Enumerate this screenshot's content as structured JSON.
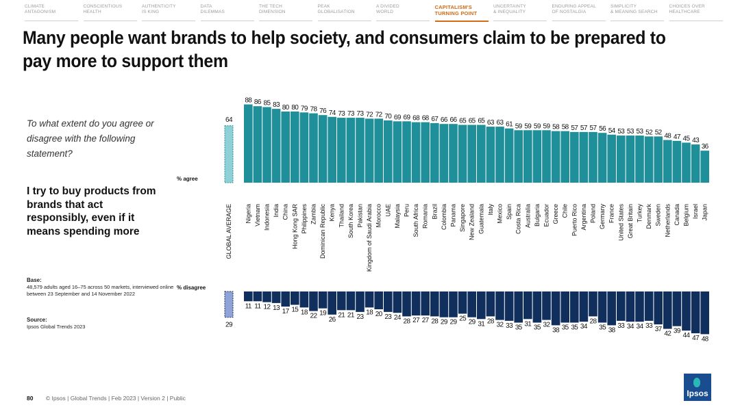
{
  "nav": [
    {
      "l1": "CLIMATE",
      "l2": "ANTAGONISM"
    },
    {
      "l1": "CONSCIENTIOUS",
      "l2": "HEALTH"
    },
    {
      "l1": "AUTHENTICITY",
      "l2": "IS KING"
    },
    {
      "l1": "DATA",
      "l2": "DILEMMAS"
    },
    {
      "l1": "THE TECH",
      "l2": "DIMENSION"
    },
    {
      "l1": "PEAK",
      "l2": "GLOBALISATION"
    },
    {
      "l1": "A DIVIDED",
      "l2": "WORLD"
    },
    {
      "l1": "CAPITALISM'S",
      "l2": "TURNING POINT"
    },
    {
      "l1": "UNCERTAINTY",
      "l2": "& INEQUALITY"
    },
    {
      "l1": "ENDURING APPEAL",
      "l2": "OF NOSTALGIA"
    },
    {
      "l1": "SIMPLICITY",
      "l2": "& MEANING SEARCH"
    },
    {
      "l1": "CHOICES OVER",
      "l2": "HEALTHCARE"
    }
  ],
  "active_nav_index": 7,
  "title": "Many people want brands to help society, and consumers claim to be prepared to pay more to support them",
  "question": "To what extent do you agree or disagree with the following statement?",
  "statement": "I try to buy products from brands that act responsibly, even if it means spending more",
  "base_title": "Base:",
  "base_text": "48,579 adults aged 16–75 across 50 markets, interviewed online between 23 September and 14 November 2022",
  "source_title": "Source:",
  "source_text": "Ipsos Global Trends 2023",
  "footer_page": "80",
  "footer_text": "© Ipsos | Global Trends | Feb 2023 | Version 2 | Public",
  "logo_text": "Ipsos",
  "colors": {
    "agree": "#1f8f9a",
    "disagree": "#112f5c",
    "avg_agree": "#8fd0d6",
    "avg_disagree": "#8fa3d6",
    "accent": "#d36a14"
  },
  "chart_data": {
    "type": "bar",
    "series": [
      {
        "name": "% agree"
      },
      {
        "name": "% disagree"
      }
    ],
    "global_average": {
      "label": "GLOBAL AVERAGE",
      "agree": 64,
      "disagree": 29
    },
    "categories": [
      "Nigeria",
      "Vietnam",
      "Indonesia",
      "India",
      "China",
      "Hong Kong SAR",
      "Philippines",
      "Zambia",
      "Dominican Republic",
      "Kenya",
      "Thailand",
      "South Korea",
      "Pakistan",
      "Kingdom of Saudi Arabia",
      "Morocco",
      "UAE",
      "Malaysia",
      "Peru",
      "South Africa",
      "Romania",
      "Brazil",
      "Colombia",
      "Panama",
      "Singapore",
      "New Zealand",
      "Guatemala",
      "Italy",
      "Mexico",
      "Spain",
      "Costa Rica",
      "Australia",
      "Bulgaria",
      "Ecuador",
      "Greece",
      "Chile",
      "Puerto Rico",
      "Argentina",
      "Poland",
      "Germany",
      "France",
      "United States",
      "Great Britain",
      "Turkey",
      "Denmark",
      "Sweden",
      "Netherlands",
      "Canada",
      "Belgium",
      "Israel",
      "Japan"
    ],
    "agree": [
      88,
      86,
      85,
      83,
      80,
      80,
      79,
      78,
      76,
      74,
      73,
      73,
      73,
      72,
      72,
      70,
      69,
      69,
      68,
      68,
      67,
      66,
      66,
      65,
      65,
      65,
      63,
      63,
      61,
      59,
      59,
      59,
      59,
      58,
      58,
      57,
      57,
      57,
      56,
      54,
      53,
      53,
      53,
      52,
      52,
      48,
      47,
      45,
      43,
      36
    ],
    "disagree": [
      11,
      11,
      12,
      13,
      17,
      15,
      18,
      22,
      19,
      26,
      21,
      21,
      23,
      18,
      20,
      23,
      24,
      28,
      27,
      27,
      28,
      29,
      29,
      25,
      29,
      31,
      28,
      32,
      33,
      35,
      31,
      35,
      32,
      38,
      35,
      35,
      34,
      28,
      35,
      38,
      33,
      34,
      34,
      33,
      37,
      42,
      39,
      44,
      47,
      48
    ]
  }
}
